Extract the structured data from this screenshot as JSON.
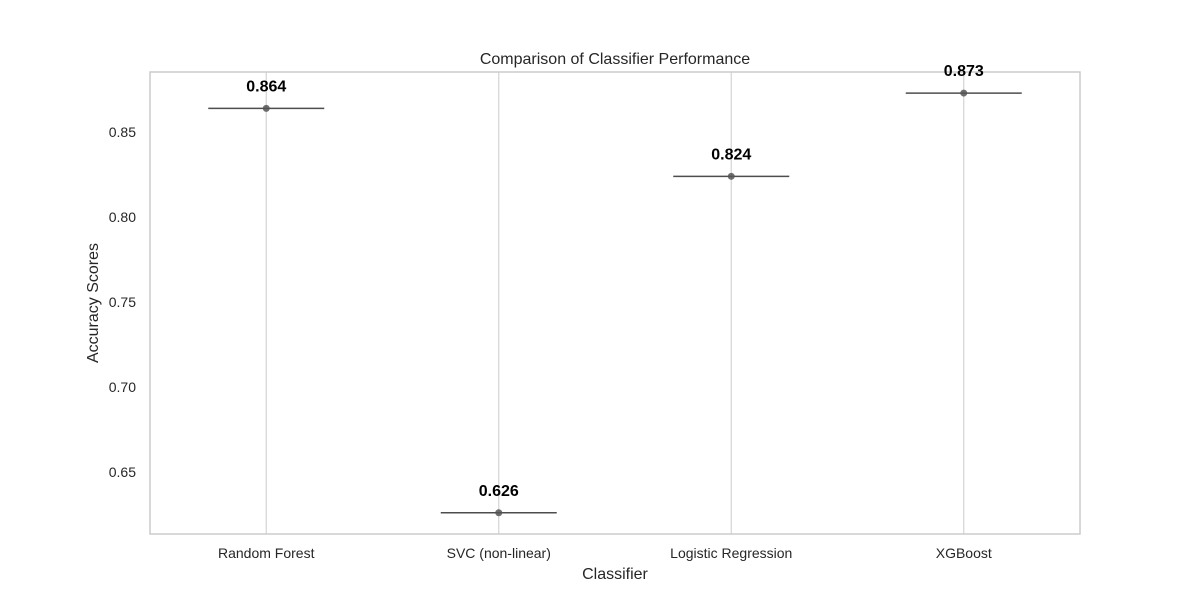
{
  "chart_data": {
    "type": "box",
    "title": "Comparison of Classifier Performance",
    "xlabel": "Classifier",
    "ylabel": "Accuracy Scores",
    "categories": [
      "Random Forest",
      "SVC (non-linear)",
      "Logistic Regression",
      "XGBoost"
    ],
    "values": [
      0.864,
      0.626,
      0.824,
      0.873
    ],
    "value_labels": [
      "0.864",
      "0.626",
      "0.824",
      "0.873"
    ],
    "yticks": [
      0.65,
      0.7,
      0.75,
      0.8,
      0.85
    ],
    "ytick_labels": [
      "0.65",
      "0.70",
      "0.75",
      "0.80",
      "0.85"
    ],
    "ylim": [
      0.6135,
      0.8854
    ],
    "grid": "vertical",
    "legend": "none",
    "colors": {
      "grid": "#d3d3d3",
      "frame": "#cccccc",
      "line": "#4d4d4d",
      "point": "#555555",
      "text": "#262626",
      "value_text": "#000000"
    }
  }
}
